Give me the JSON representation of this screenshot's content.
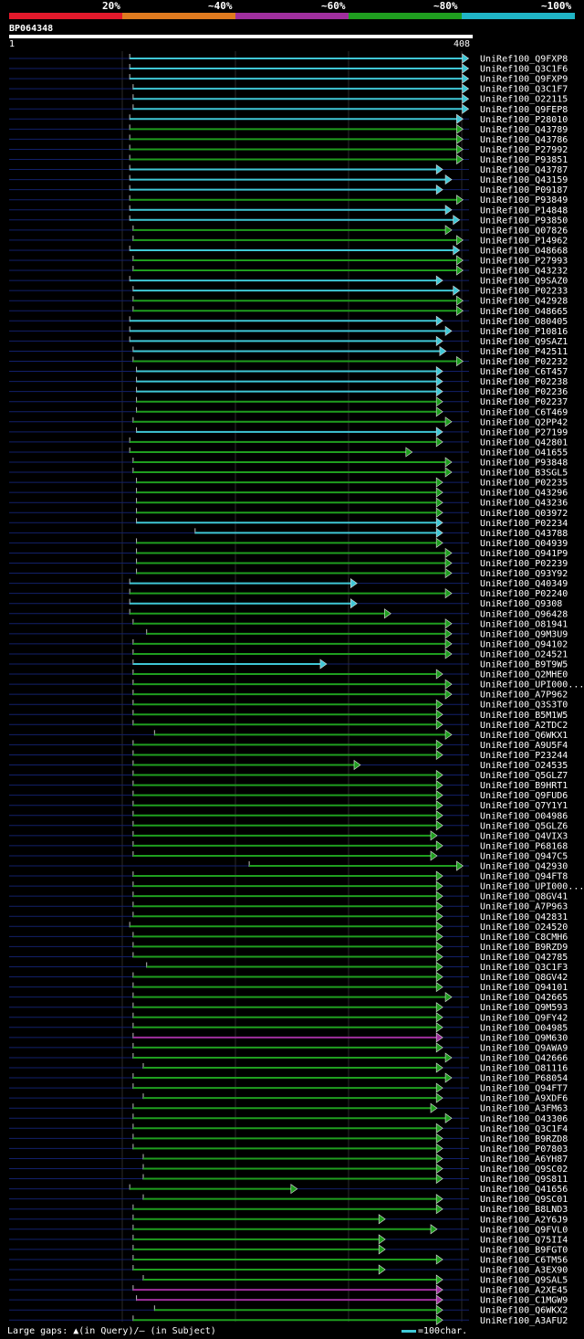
{
  "colors": {
    "background": "#000000",
    "cyan": "#3fc7d6",
    "green": "#1f9e1f",
    "magenta": "#a02f9e",
    "navy": "#12206a",
    "grid": "#2a2a2a",
    "legend": [
      "#e3192b",
      "#e07a1f",
      "#a02f9e",
      "#1f9e1f",
      "#20b5c6"
    ]
  },
  "legend": {
    "labels": [
      "20%",
      "~40%",
      "~60%",
      "~80%",
      "~100%"
    ]
  },
  "query": {
    "name": "BP064348",
    "start_label": "1",
    "end_label": "408",
    "length": 408
  },
  "footer": {
    "gaps_text": "Large gaps: ▲(in Query)/– (in Subject)",
    "scale_text": "=100char."
  },
  "chart_data": {
    "type": "alignment-overview",
    "query_length": 408,
    "hits": [
      {
        "name": "UniRef100_Q9FXP8",
        "start": 107,
        "end": 402,
        "color": "cyan"
      },
      {
        "name": "UniRef100_Q3C1F6",
        "start": 107,
        "end": 402,
        "color": "cyan"
      },
      {
        "name": "UniRef100_Q9FXP9",
        "start": 107,
        "end": 402,
        "color": "cyan"
      },
      {
        "name": "UniRef100_Q3C1F7",
        "start": 110,
        "end": 402,
        "color": "cyan"
      },
      {
        "name": "UniRef100_O22115",
        "start": 110,
        "end": 402,
        "color": "cyan"
      },
      {
        "name": "UniRef100_Q9FEP8",
        "start": 110,
        "end": 402,
        "color": "cyan"
      },
      {
        "name": "UniRef100_P28010",
        "start": 107,
        "end": 397,
        "color": "cyan"
      },
      {
        "name": "UniRef100_Q43789",
        "start": 107,
        "end": 397,
        "color": "green"
      },
      {
        "name": "UniRef100_Q43786",
        "start": 107,
        "end": 397,
        "color": "green"
      },
      {
        "name": "UniRef100_P27992",
        "start": 107,
        "end": 397,
        "color": "green"
      },
      {
        "name": "UniRef100_P93851",
        "start": 107,
        "end": 397,
        "color": "green"
      },
      {
        "name": "UniRef100_Q43787",
        "start": 107,
        "end": 379,
        "color": "cyan"
      },
      {
        "name": "UniRef100_Q43159",
        "start": 107,
        "end": 387,
        "color": "cyan"
      },
      {
        "name": "UniRef100_P09187",
        "start": 107,
        "end": 379,
        "color": "cyan"
      },
      {
        "name": "UniRef100_P93849",
        "start": 107,
        "end": 397,
        "color": "green"
      },
      {
        "name": "UniRef100_P14848",
        "start": 107,
        "end": 387,
        "color": "cyan"
      },
      {
        "name": "UniRef100_P93850",
        "start": 107,
        "end": 394,
        "color": "cyan"
      },
      {
        "name": "UniRef100_Q07826",
        "start": 110,
        "end": 387,
        "color": "green"
      },
      {
        "name": "UniRef100_P14962",
        "start": 110,
        "end": 397,
        "color": "green"
      },
      {
        "name": "UniRef100_O48668",
        "start": 107,
        "end": 394,
        "color": "cyan"
      },
      {
        "name": "UniRef100_P27993",
        "start": 110,
        "end": 397,
        "color": "green"
      },
      {
        "name": "UniRef100_Q43232",
        "start": 110,
        "end": 397,
        "color": "green"
      },
      {
        "name": "UniRef100_Q9SAZ0",
        "start": 107,
        "end": 379,
        "color": "cyan"
      },
      {
        "name": "UniRef100_P02233",
        "start": 110,
        "end": 394,
        "color": "cyan"
      },
      {
        "name": "UniRef100_Q42928",
        "start": 110,
        "end": 397,
        "color": "green"
      },
      {
        "name": "UniRef100_O48665",
        "start": 110,
        "end": 397,
        "color": "green"
      },
      {
        "name": "UniRef100_O80405",
        "start": 107,
        "end": 379,
        "color": "cyan"
      },
      {
        "name": "UniRef100_P10816",
        "start": 107,
        "end": 387,
        "color": "cyan"
      },
      {
        "name": "UniRef100_Q9SAZ1",
        "start": 107,
        "end": 379,
        "color": "cyan"
      },
      {
        "name": "UniRef100_P42511",
        "start": 110,
        "end": 382,
        "color": "cyan"
      },
      {
        "name": "UniRef100_P02232",
        "start": 110,
        "end": 397,
        "color": "green"
      },
      {
        "name": "UniRef100_C6T457",
        "start": 113,
        "end": 379,
        "color": "cyan"
      },
      {
        "name": "UniRef100_P02238",
        "start": 113,
        "end": 379,
        "color": "cyan"
      },
      {
        "name": "UniRef100_P02236",
        "start": 113,
        "end": 379,
        "color": "cyan"
      },
      {
        "name": "UniRef100_P02237",
        "start": 113,
        "end": 379,
        "color": "green"
      },
      {
        "name": "UniRef100_C6T469",
        "start": 113,
        "end": 379,
        "color": "green"
      },
      {
        "name": "UniRef100_Q2PP42",
        "start": 110,
        "end": 387,
        "color": "green"
      },
      {
        "name": "UniRef100_P27199",
        "start": 113,
        "end": 379,
        "color": "cyan"
      },
      {
        "name": "UniRef100_Q42801",
        "start": 107,
        "end": 379,
        "color": "green"
      },
      {
        "name": "UniRef100_O41655",
        "start": 107,
        "end": 352,
        "color": "green"
      },
      {
        "name": "UniRef100_P93848",
        "start": 110,
        "end": 387,
        "color": "green"
      },
      {
        "name": "UniRef100_B3SGL5",
        "start": 110,
        "end": 387,
        "color": "green"
      },
      {
        "name": "UniRef100_P02235",
        "start": 113,
        "end": 379,
        "color": "green"
      },
      {
        "name": "UniRef100_Q43296",
        "start": 113,
        "end": 379,
        "color": "green"
      },
      {
        "name": "UniRef100_Q43236",
        "start": 113,
        "end": 379,
        "color": "green"
      },
      {
        "name": "UniRef100_Q03972",
        "start": 113,
        "end": 379,
        "color": "green"
      },
      {
        "name": "UniRef100_P02234",
        "start": 113,
        "end": 379,
        "color": "cyan"
      },
      {
        "name": "UniRef100_Q43788",
        "start": 165,
        "end": 379,
        "color": "cyan"
      },
      {
        "name": "UniRef100_Q04939",
        "start": 113,
        "end": 379,
        "color": "green"
      },
      {
        "name": "UniRef100_Q941P9",
        "start": 113,
        "end": 387,
        "color": "green"
      },
      {
        "name": "UniRef100_P02239",
        "start": 113,
        "end": 387,
        "color": "green"
      },
      {
        "name": "UniRef100_Q93Y92",
        "start": 113,
        "end": 387,
        "color": "green"
      },
      {
        "name": "UniRef100_Q40349",
        "start": 107,
        "end": 303,
        "color": "cyan"
      },
      {
        "name": "UniRef100_P02240",
        "start": 107,
        "end": 387,
        "color": "green"
      },
      {
        "name": "UniRef100_Q9308",
        "start": 107,
        "end": 303,
        "color": "cyan"
      },
      {
        "name": "UniRef100_Q96428",
        "start": 107,
        "end": 333,
        "color": "green"
      },
      {
        "name": "UniRef100_O81941",
        "start": 110,
        "end": 387,
        "color": "green"
      },
      {
        "name": "UniRef100_Q9M3U9",
        "start": 122,
        "end": 387,
        "color": "green"
      },
      {
        "name": "UniRef100_Q94102",
        "start": 110,
        "end": 387,
        "color": "green"
      },
      {
        "name": "UniRef100_O24521",
        "start": 110,
        "end": 387,
        "color": "green"
      },
      {
        "name": "UniRef100_B9T9W5",
        "start": 110,
        "end": 276,
        "color": "cyan"
      },
      {
        "name": "UniRef100_Q2MHE0",
        "start": 110,
        "end": 379,
        "color": "green"
      },
      {
        "name": "UniRef100_UPI000...",
        "start": 110,
        "end": 387,
        "color": "green"
      },
      {
        "name": "UniRef100_A7P962",
        "start": 110,
        "end": 387,
        "color": "green"
      },
      {
        "name": "UniRef100_Q3S3T0",
        "start": 110,
        "end": 379,
        "color": "green"
      },
      {
        "name": "UniRef100_B5M1W5",
        "start": 110,
        "end": 379,
        "color": "green"
      },
      {
        "name": "UniRef100_A2TDC2",
        "start": 110,
        "end": 379,
        "color": "green"
      },
      {
        "name": "UniRef100_Q6WKX1",
        "start": 129,
        "end": 387,
        "color": "green"
      },
      {
        "name": "UniRef100_A9U5F4",
        "start": 110,
        "end": 379,
        "color": "green"
      },
      {
        "name": "UniRef100_P23244",
        "start": 110,
        "end": 379,
        "color": "green"
      },
      {
        "name": "UniRef100_O24535",
        "start": 110,
        "end": 306,
        "color": "green"
      },
      {
        "name": "UniRef100_Q5GLZ7",
        "start": 110,
        "end": 379,
        "color": "green"
      },
      {
        "name": "UniRef100_B9HRT1",
        "start": 110,
        "end": 379,
        "color": "green"
      },
      {
        "name": "UniRef100_Q9FUD6",
        "start": 110,
        "end": 379,
        "color": "green"
      },
      {
        "name": "UniRef100_Q7Y1Y1",
        "start": 110,
        "end": 379,
        "color": "green"
      },
      {
        "name": "UniRef100_O04986",
        "start": 110,
        "end": 379,
        "color": "green"
      },
      {
        "name": "UniRef100_Q5GLZ6",
        "start": 110,
        "end": 379,
        "color": "green"
      },
      {
        "name": "UniRef100_Q4VIX3",
        "start": 110,
        "end": 374,
        "color": "green"
      },
      {
        "name": "UniRef100_P68168",
        "start": 110,
        "end": 379,
        "color": "green"
      },
      {
        "name": "UniRef100_Q947C5",
        "start": 110,
        "end": 374,
        "color": "green"
      },
      {
        "name": "UniRef100_Q42930",
        "start": 213,
        "end": 397,
        "color": "green"
      },
      {
        "name": "UniRef100_Q94FT8",
        "start": 110,
        "end": 379,
        "color": "green"
      },
      {
        "name": "UniRef100_UPI000...",
        "start": 110,
        "end": 379,
        "color": "green"
      },
      {
        "name": "UniRef100_Q8GV41",
        "start": 110,
        "end": 379,
        "color": "green"
      },
      {
        "name": "UniRef100_A7P963",
        "start": 110,
        "end": 379,
        "color": "green"
      },
      {
        "name": "UniRef100_Q42831",
        "start": 110,
        "end": 379,
        "color": "green"
      },
      {
        "name": "UniRef100_O24520",
        "start": 107,
        "end": 379,
        "color": "green"
      },
      {
        "name": "UniRef100_C8CMH6",
        "start": 110,
        "end": 379,
        "color": "green"
      },
      {
        "name": "UniRef100_B9RZD9",
        "start": 110,
        "end": 379,
        "color": "green"
      },
      {
        "name": "UniRef100_Q42785",
        "start": 110,
        "end": 379,
        "color": "green"
      },
      {
        "name": "UniRef100_Q3C1F3",
        "start": 122,
        "end": 379,
        "color": "green"
      },
      {
        "name": "UniRef100_Q8GV42",
        "start": 110,
        "end": 379,
        "color": "green"
      },
      {
        "name": "UniRef100_Q94101",
        "start": 110,
        "end": 379,
        "color": "green"
      },
      {
        "name": "UniRef100_Q42665",
        "start": 110,
        "end": 387,
        "color": "green"
      },
      {
        "name": "UniRef100_Q9M593",
        "start": 110,
        "end": 379,
        "color": "green"
      },
      {
        "name": "UniRef100_Q9FY42",
        "start": 110,
        "end": 379,
        "color": "green"
      },
      {
        "name": "UniRef100_O04985",
        "start": 110,
        "end": 379,
        "color": "green"
      },
      {
        "name": "UniRef100_Q9M630",
        "start": 110,
        "end": 379,
        "color": "magenta"
      },
      {
        "name": "UniRef100_Q9AWA9",
        "start": 110,
        "end": 379,
        "color": "green"
      },
      {
        "name": "UniRef100_Q42666",
        "start": 110,
        "end": 387,
        "color": "green"
      },
      {
        "name": "UniRef100_O81116",
        "start": 119,
        "end": 379,
        "color": "green"
      },
      {
        "name": "UniRef100_P68054",
        "start": 110,
        "end": 387,
        "color": "green"
      },
      {
        "name": "UniRef100_Q94FT7",
        "start": 110,
        "end": 379,
        "color": "green"
      },
      {
        "name": "UniRef100_A9XDF6",
        "start": 119,
        "end": 379,
        "color": "green"
      },
      {
        "name": "UniRef100_A3FM63",
        "start": 110,
        "end": 374,
        "color": "green"
      },
      {
        "name": "UniRef100_O43306",
        "start": 110,
        "end": 387,
        "color": "green"
      },
      {
        "name": "UniRef100_Q3C1F4",
        "start": 110,
        "end": 379,
        "color": "green"
      },
      {
        "name": "UniRef100_B9RZD8",
        "start": 110,
        "end": 379,
        "color": "green"
      },
      {
        "name": "UniRef100_P07803",
        "start": 110,
        "end": 379,
        "color": "green"
      },
      {
        "name": "UniRef100_A6YH87",
        "start": 119,
        "end": 379,
        "color": "green"
      },
      {
        "name": "UniRef100_Q9SC02",
        "start": 119,
        "end": 379,
        "color": "green"
      },
      {
        "name": "UniRef100_Q9S811",
        "start": 119,
        "end": 379,
        "color": "green"
      },
      {
        "name": "UniRef100_Q41656",
        "start": 107,
        "end": 250,
        "color": "green"
      },
      {
        "name": "UniRef100_Q9SC01",
        "start": 119,
        "end": 379,
        "color": "green"
      },
      {
        "name": "UniRef100_B8LND3",
        "start": 110,
        "end": 379,
        "color": "green"
      },
      {
        "name": "UniRef100_A2Y6J9",
        "start": 110,
        "end": 328,
        "color": "green"
      },
      {
        "name": "UniRef100_Q9FVL0",
        "start": 110,
        "end": 374,
        "color": "green"
      },
      {
        "name": "UniRef100_Q75II4",
        "start": 110,
        "end": 328,
        "color": "green"
      },
      {
        "name": "UniRef100_B9FGT0",
        "start": 110,
        "end": 328,
        "color": "green"
      },
      {
        "name": "UniRef100_C6TM56",
        "start": 110,
        "end": 379,
        "color": "green"
      },
      {
        "name": "UniRef100_A3EX90",
        "start": 110,
        "end": 328,
        "color": "green"
      },
      {
        "name": "UniRef100_Q9SAL5",
        "start": 119,
        "end": 379,
        "color": "green"
      },
      {
        "name": "UniRef100_A2XE45",
        "start": 110,
        "end": 379,
        "color": "magenta"
      },
      {
        "name": "UniRef100_C1MGW9",
        "start": 113,
        "end": 379,
        "color": "magenta"
      },
      {
        "name": "UniRef100_Q6WKX2",
        "start": 129,
        "end": 379,
        "color": "green"
      },
      {
        "name": "UniRef100_A3AFU2",
        "start": 110,
        "end": 379,
        "color": "green"
      }
    ]
  }
}
